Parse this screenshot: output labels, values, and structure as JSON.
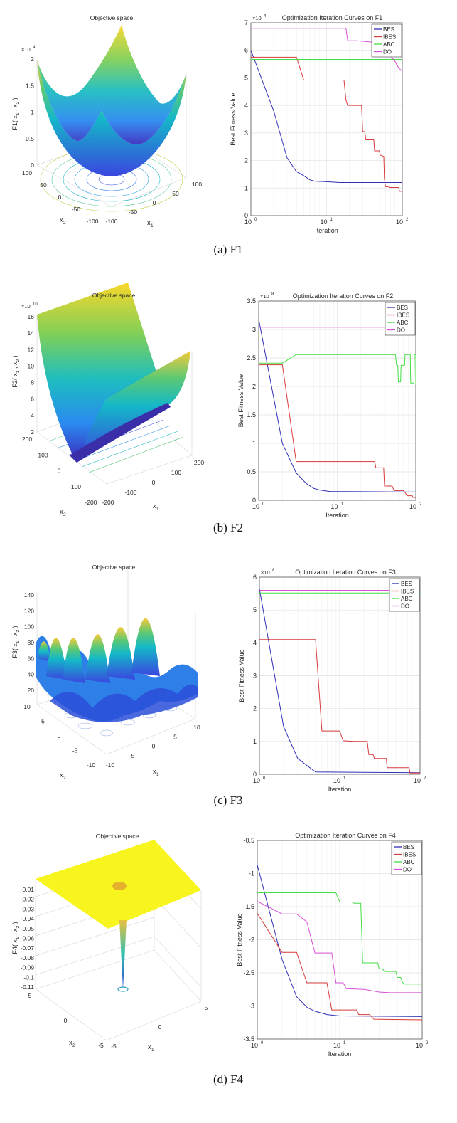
{
  "captions": [
    "(a) F1",
    "(b) F2",
    "(c) F3",
    "(d) F4"
  ],
  "surfaces": [
    {
      "title": "Objective space",
      "zlabel": {
        "prefix": "F1( x",
        "sub1": "1",
        "mid": " , x",
        "sub2": "2",
        "suffix": " )"
      },
      "z_multiplier": {
        "base": "×10",
        "exp": "4"
      },
      "z_ticks": [
        "0",
        "0.5",
        "1",
        "1.5",
        "2"
      ],
      "x2_ticks": [
        "100",
        "50",
        "0",
        "-50",
        "-100"
      ],
      "x1_ticks": [
        "-100",
        "-50",
        "0",
        "50",
        "100"
      ],
      "x1_label": {
        "var": "x",
        "sub": "1"
      },
      "x2_label": {
        "var": "x",
        "sub": "2"
      }
    },
    {
      "title": "Objective space",
      "zlabel": {
        "prefix": "F2( x",
        "sub1": "1",
        "mid": " , x",
        "sub2": "2",
        "suffix": " )"
      },
      "z_multiplier": {
        "base": "×10",
        "exp": "10"
      },
      "z_ticks": [
        "2",
        "4",
        "6",
        "8",
        "10",
        "12",
        "14",
        "16"
      ],
      "x2_ticks": [
        "200",
        "100",
        "0",
        "-100",
        "-200"
      ],
      "x1_ticks": [
        "-200",
        "-100",
        "0",
        "100",
        "200"
      ],
      "x1_label": {
        "var": "x",
        "sub": "1"
      },
      "x2_label": {
        "var": "x",
        "sub": "2"
      }
    },
    {
      "title": "Objective space",
      "zlabel": {
        "prefix": "F3( x",
        "sub1": "1",
        "mid": " , x",
        "sub2": "2",
        "suffix": " )"
      },
      "z_multiplier": null,
      "z_ticks": [
        "20",
        "40",
        "60",
        "80",
        "100",
        "120",
        "140"
      ],
      "x2_ticks": [
        "10",
        "5",
        "0",
        "-5",
        "-10"
      ],
      "x1_ticks": [
        "-10",
        "-5",
        "0",
        "5",
        "10"
      ],
      "x1_label": {
        "var": "x",
        "sub": "1"
      },
      "x2_label": {
        "var": "x",
        "sub": "2"
      }
    },
    {
      "title": "Objective space",
      "zlabel": {
        "prefix": "F4( x",
        "sub1": "1",
        "mid": " , x",
        "sub2": "2",
        "suffix": " )"
      },
      "z_multiplier": null,
      "z_ticks": [
        "-0.11",
        "-0.1",
        "-0.09",
        "-0.08",
        "-0.07",
        "-0.06",
        "-0.05",
        "-0.04",
        "-0.03",
        "-0.02",
        "-0.01"
      ],
      "x2_ticks": [
        "5",
        "0",
        "-5"
      ],
      "x1_ticks": [
        "-5",
        "0",
        "5"
      ],
      "x1_label": {
        "var": "x",
        "sub": "1"
      },
      "x2_label": {
        "var": "x",
        "sub": "2"
      }
    }
  ],
  "colors": {
    "BES": "#2f2fb5",
    "IBES": "#d83a3a",
    "ABC": "#44dd44",
    "DO": "#d84fd8"
  },
  "chart_data": [
    {
      "type": "line",
      "title": "Optimization Iteration Curves on F1",
      "xlabel": "Iteration",
      "ylabel": "Best Fitness Value",
      "xscale": "log",
      "xlim": [
        1,
        100
      ],
      "ylim": [
        0,
        7
      ],
      "y_ticks": [
        0,
        1,
        2,
        3,
        4,
        5,
        6,
        7
      ],
      "y_multiplier": {
        "base": "×10",
        "exp": "4"
      },
      "x_ticks": [
        {
          "base": "10",
          "exp": "0"
        },
        {
          "base": "10",
          "exp": "1"
        },
        {
          "base": "10",
          "exp": "2"
        }
      ],
      "grid": true,
      "legend": "top-right",
      "series": [
        {
          "name": "BES",
          "points": [
            [
              1,
              6
            ],
            [
              2,
              3.8
            ],
            [
              3,
              2.1
            ],
            [
              4,
              1.6
            ],
            [
              5,
              1.45
            ],
            [
              6,
              1.3
            ],
            [
              7,
              1.25
            ],
            [
              10,
              1.23
            ],
            [
              15,
              1.2
            ],
            [
              100,
              1.2
            ]
          ]
        },
        {
          "name": "IBES",
          "points": [
            [
              1,
              5.75
            ],
            [
              4,
              5.75
            ],
            [
              5,
              4.92
            ],
            [
              17,
              4.92
            ],
            [
              18,
              4.2
            ],
            [
              19,
              4.0
            ],
            [
              29,
              4.0
            ],
            [
              30,
              3.05
            ],
            [
              32,
              3.05
            ],
            [
              33,
              2.75
            ],
            [
              42,
              2.75
            ],
            [
              43,
              2.35
            ],
            [
              50,
              2.35
            ],
            [
              51,
              2.2
            ],
            [
              57,
              2.15
            ],
            [
              58,
              1.35
            ],
            [
              60,
              1.05
            ],
            [
              67,
              1.05
            ],
            [
              68,
              1.02
            ],
            [
              90,
              1.02
            ],
            [
              92,
              0.88
            ],
            [
              100,
              0.88
            ]
          ]
        },
        {
          "name": "ABC",
          "points": [
            [
              1,
              5.67
            ],
            [
              100,
              5.67
            ]
          ]
        },
        {
          "name": "DO",
          "points": [
            [
              1,
              6.8
            ],
            [
              18,
              6.8
            ],
            [
              19,
              6.35
            ],
            [
              25,
              6.35
            ],
            [
              40,
              6.3
            ],
            [
              50,
              6.1
            ],
            [
              60,
              5.95
            ],
            [
              70,
              5.8
            ],
            [
              80,
              5.6
            ],
            [
              90,
              5.35
            ],
            [
              100,
              5.25
            ]
          ]
        }
      ]
    },
    {
      "type": "line",
      "title": "Optimization Iteration Curves on F2",
      "xlabel": "Iteration",
      "ylabel": "Best Fitness Value",
      "xscale": "log",
      "xlim": [
        1,
        100
      ],
      "ylim": [
        0,
        3.5
      ],
      "y_ticks": [
        0,
        0.5,
        1,
        1.5,
        2,
        2.5,
        3,
        3.5
      ],
      "y_multiplier": {
        "base": "×10",
        "exp": "8"
      },
      "x_ticks": [
        {
          "base": "10",
          "exp": "0"
        },
        {
          "base": "10",
          "exp": "1"
        },
        {
          "base": "10",
          "exp": "2"
        }
      ],
      "grid": true,
      "legend": "top-right",
      "series": [
        {
          "name": "BES",
          "points": [
            [
              1,
              3.18
            ],
            [
              2,
              1.0
            ],
            [
              3,
              0.48
            ],
            [
              4,
              0.3
            ],
            [
              5,
              0.21
            ],
            [
              6,
              0.18
            ],
            [
              8,
              0.155
            ],
            [
              100,
              0.145
            ]
          ]
        },
        {
          "name": "IBES",
          "points": [
            [
              1,
              2.38
            ],
            [
              2,
              2.38
            ],
            [
              3,
              0.68
            ],
            [
              30,
              0.68
            ],
            [
              31,
              0.57
            ],
            [
              39,
              0.57
            ],
            [
              40,
              0.25
            ],
            [
              50,
              0.25
            ],
            [
              53,
              0.17
            ],
            [
              70,
              0.17
            ],
            [
              78,
              0.08
            ],
            [
              90,
              0.08
            ],
            [
              92,
              0.05
            ],
            [
              100,
              0.05
            ]
          ]
        },
        {
          "name": "ABC",
          "points": [
            [
              1,
              2.41
            ],
            [
              2,
              2.41
            ],
            [
              3,
              2.56
            ],
            [
              55,
              2.56
            ],
            [
              57,
              2.37
            ],
            [
              59,
              2.37
            ],
            [
              60,
              2.08
            ],
            [
              64,
              2.08
            ],
            [
              65,
              2.37
            ],
            [
              72,
              2.37
            ],
            [
              73,
              2.56
            ],
            [
              85,
              2.56
            ],
            [
              86,
              2.06
            ],
            [
              95,
              2.06
            ],
            [
              96,
              2.56
            ],
            [
              100,
              2.56
            ],
            [
              100,
              2.04
            ]
          ]
        },
        {
          "name": "DO",
          "points": [
            [
              1,
              3.04
            ],
            [
              100,
              3.04
            ]
          ]
        }
      ]
    },
    {
      "type": "line",
      "title": "Optimization Iteration Curves on F3",
      "xlabel": "Iteration",
      "ylabel": "Best Fitness Value",
      "xscale": "log",
      "xlim": [
        1,
        100
      ],
      "ylim": [
        0,
        6
      ],
      "y_ticks": [
        0,
        1,
        2,
        3,
        4,
        5,
        6
      ],
      "y_multiplier": {
        "base": "×10",
        "exp": "8"
      },
      "x_ticks": [
        {
          "base": "10",
          "exp": "0"
        },
        {
          "base": "10",
          "exp": "1"
        },
        {
          "base": "10",
          "exp": "2"
        }
      ],
      "grid": true,
      "legend": "top-right",
      "series": [
        {
          "name": "BES",
          "points": [
            [
              1,
              5.65
            ],
            [
              2,
              1.45
            ],
            [
              3,
              0.48
            ],
            [
              5,
              0.07
            ],
            [
              100,
              0.05
            ]
          ]
        },
        {
          "name": "IBES",
          "points": [
            [
              1,
              4.1
            ],
            [
              5,
              4.1
            ],
            [
              6,
              1.32
            ],
            [
              10,
              1.32
            ],
            [
              11,
              1.02
            ],
            [
              15,
              1.0
            ],
            [
              22,
              1.0
            ],
            [
              23,
              0.6
            ],
            [
              26,
              0.6
            ],
            [
              27,
              0.48
            ],
            [
              38,
              0.48
            ],
            [
              39,
              0.2
            ],
            [
              73,
              0.2
            ],
            [
              75,
              0.04
            ],
            [
              100,
              0.04
            ]
          ]
        },
        {
          "name": "ABC",
          "points": [
            [
              1,
              5.52
            ],
            [
              100,
              5.52
            ]
          ]
        },
        {
          "name": "DO",
          "points": [
            [
              1,
              5.6
            ],
            [
              100,
              5.6
            ]
          ]
        }
      ]
    },
    {
      "type": "line",
      "title": "Optimization Iteration Curves on F4",
      "xlabel": "Iteration",
      "ylabel": "Best Fitness Value",
      "xscale": "log",
      "xlim": [
        1,
        100
      ],
      "ylim": [
        -3.5,
        -0.5
      ],
      "y_ticks": [
        -3.5,
        -3,
        -2.5,
        -2,
        -1.5,
        -1,
        -0.5
      ],
      "y_multiplier": null,
      "x_ticks": [
        {
          "base": "10",
          "exp": "0"
        },
        {
          "base": "10",
          "exp": "1"
        },
        {
          "base": "10",
          "exp": "2"
        }
      ],
      "grid": true,
      "legend": "top-right",
      "series": [
        {
          "name": "BES",
          "points": [
            [
              1,
              -0.87
            ],
            [
              2,
              -2.3
            ],
            [
              3,
              -2.86
            ],
            [
              4,
              -3.02
            ],
            [
              5,
              -3.08
            ],
            [
              7,
              -3.13
            ],
            [
              10,
              -3.15
            ],
            [
              100,
              -3.16
            ]
          ]
        },
        {
          "name": "IBES",
          "points": [
            [
              1,
              -1.6
            ],
            [
              2,
              -2.19
            ],
            [
              3,
              -2.19
            ],
            [
              4,
              -2.65
            ],
            [
              7,
              -2.65
            ],
            [
              8,
              -3.06
            ],
            [
              16,
              -3.06
            ],
            [
              17,
              -3.13
            ],
            [
              23,
              -3.13
            ],
            [
              26,
              -3.2
            ],
            [
              100,
              -3.21
            ]
          ]
        },
        {
          "name": "ABC",
          "points": [
            [
              1,
              -1.29
            ],
            [
              9,
              -1.29
            ],
            [
              10,
              -1.43
            ],
            [
              14,
              -1.43
            ],
            [
              15,
              -1.45
            ],
            [
              18,
              -1.45
            ],
            [
              19,
              -2.35
            ],
            [
              29,
              -2.35
            ],
            [
              30,
              -2.44
            ],
            [
              33,
              -2.44
            ],
            [
              35,
              -2.48
            ],
            [
              48,
              -2.48
            ],
            [
              50,
              -2.57
            ],
            [
              55,
              -2.57
            ],
            [
              57,
              -2.63
            ],
            [
              60,
              -2.67
            ],
            [
              100,
              -2.67
            ]
          ]
        },
        {
          "name": "DO",
          "points": [
            [
              1,
              -1.42
            ],
            [
              2,
              -1.61
            ],
            [
              3,
              -1.61
            ],
            [
              4,
              -1.73
            ],
            [
              5,
              -2.2
            ],
            [
              8,
              -2.2
            ],
            [
              9,
              -2.65
            ],
            [
              11,
              -2.65
            ],
            [
              12,
              -2.74
            ],
            [
              20,
              -2.75
            ],
            [
              30,
              -2.79
            ],
            [
              40,
              -2.8
            ],
            [
              100,
              -2.8
            ]
          ]
        }
      ]
    }
  ]
}
